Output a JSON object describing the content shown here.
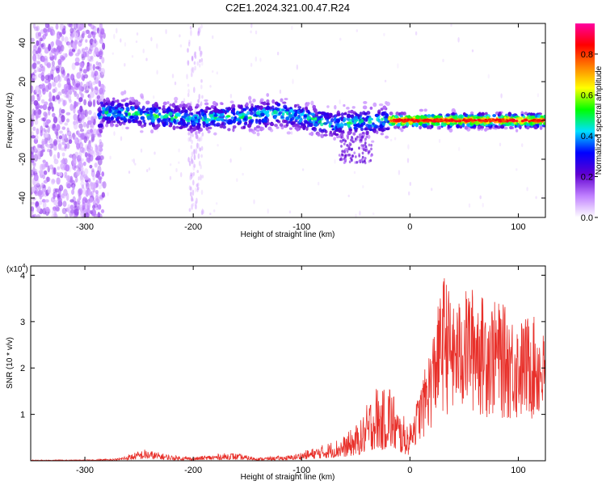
{
  "title": "C2E1.2024.321.00.47.R24",
  "chart_data": [
    {
      "type": "heatmap",
      "xlabel": "Height of straight line (km)",
      "ylabel": "Frequency (Hz)",
      "xlim": [
        -350,
        125
      ],
      "ylim": [
        -50,
        50
      ],
      "xticks": [
        -300,
        -200,
        -100,
        0,
        100
      ],
      "yticks": [
        -40,
        -20,
        0,
        20,
        40
      ],
      "colorbar": {
        "label": "Normalized spectral amplitude",
        "range": [
          0,
          0.95
        ],
        "ticks": [
          0.0,
          0.2,
          0.4,
          0.6,
          0.8
        ],
        "colormap": [
          "#ffffff",
          "#c080ff",
          "#6000d0",
          "#0000ff",
          "#00e0ff",
          "#00ff00",
          "#ffff00",
          "#ff8000",
          "#ff0000",
          "#ff00a0"
        ]
      },
      "trace_center_hz": [
        {
          "x": -285,
          "y": 5
        },
        {
          "x": -250,
          "y": 3
        },
        {
          "x": -200,
          "y": 1
        },
        {
          "x": -150,
          "y": 2
        },
        {
          "x": -120,
          "y": 4
        },
        {
          "x": -100,
          "y": 2
        },
        {
          "x": -75,
          "y": -2
        },
        {
          "x": -50,
          "y": -1
        },
        {
          "x": -25,
          "y": 0
        },
        {
          "x": 0,
          "y": 0
        },
        {
          "x": 50,
          "y": 0
        },
        {
          "x": 125,
          "y": 0
        }
      ]
    },
    {
      "type": "line",
      "xlabel": "Height of straight line (km)",
      "ylabel": "SNR (10 * v/v)",
      "y_multiplier": "(x10",
      "y_multiplier_exp": "4",
      "xlim": [
        -350,
        125
      ],
      "ylim": [
        0,
        4.2
      ],
      "xticks": [
        -300,
        -200,
        -100,
        0,
        100
      ],
      "yticks": [
        1,
        2,
        3,
        4
      ],
      "series": [
        {
          "color": "#e8302a",
          "envelope": [
            {
              "x": -350,
              "y": 0.02
            },
            {
              "x": -300,
              "y": 0.02
            },
            {
              "x": -270,
              "y": 0.05
            },
            {
              "x": -245,
              "y": 0.25
            },
            {
              "x": -220,
              "y": 0.12
            },
            {
              "x": -200,
              "y": 0.08
            },
            {
              "x": -165,
              "y": 0.18
            },
            {
              "x": -140,
              "y": 0.07
            },
            {
              "x": -110,
              "y": 0.12
            },
            {
              "x": -80,
              "y": 0.35
            },
            {
              "x": -60,
              "y": 0.55
            },
            {
              "x": -45,
              "y": 0.9
            },
            {
              "x": -32,
              "y": 1.7
            },
            {
              "x": -25,
              "y": 1.5
            },
            {
              "x": -20,
              "y": 1.9
            },
            {
              "x": -10,
              "y": 1.1
            },
            {
              "x": 0,
              "y": 0.8
            },
            {
              "x": 10,
              "y": 1.6
            },
            {
              "x": 20,
              "y": 2.6
            },
            {
              "x": 32,
              "y": 4.1
            },
            {
              "x": 40,
              "y": 3.3
            },
            {
              "x": 55,
              "y": 3.8
            },
            {
              "x": 70,
              "y": 3.5
            },
            {
              "x": 85,
              "y": 3.4
            },
            {
              "x": 100,
              "y": 3.0
            },
            {
              "x": 112,
              "y": 3.2
            },
            {
              "x": 125,
              "y": 2.7
            }
          ]
        }
      ]
    }
  ]
}
